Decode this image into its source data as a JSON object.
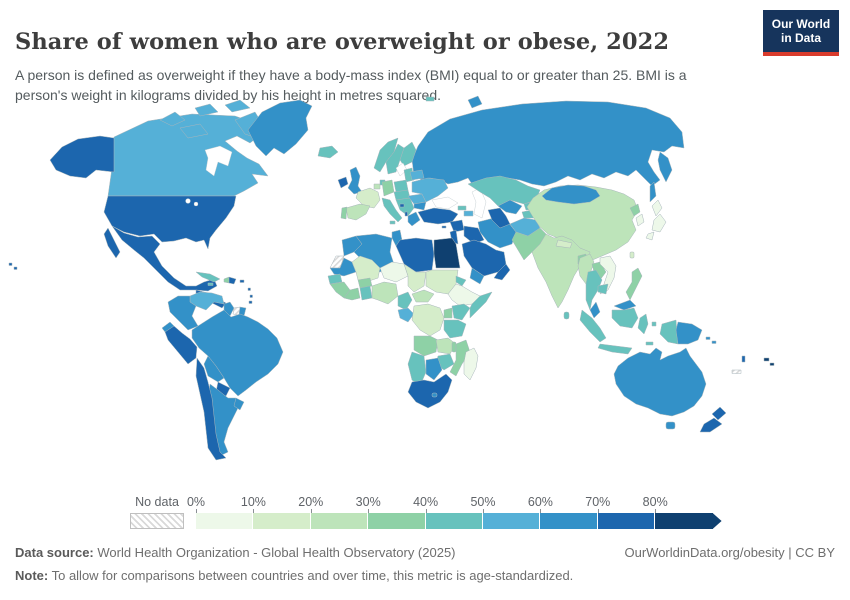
{
  "header": {
    "title": "Share of women who are overweight or obese, 2022",
    "subtitle": "A person is defined as overweight if they have a body-mass index (BMI) equal to or greater than 25. BMI is a person's weight in kilograms divided by his height in metres squared.",
    "logo": {
      "line1": "Our World",
      "line2": "in Data",
      "bg_color": "#16345c",
      "stripe_color": "#d93b2c"
    }
  },
  "legend": {
    "no_data_label": "No data",
    "ticks": [
      "0%",
      "10%",
      "20%",
      "30%",
      "40%",
      "50%",
      "60%",
      "70%",
      "80%"
    ]
  },
  "footer": {
    "data_source_label": "Data source:",
    "data_source": " World Health Organization - Global Health Observatory (2025)",
    "link": "OurWorldinData.org/obesity | CC BY",
    "note_label": "Note:",
    "note": " To allow for comparisons between countries and over time, this metric is age-standardized."
  },
  "chart_data": {
    "type": "choropleth_map",
    "title": "Share of women who are overweight or obese, 2022",
    "year": 2022,
    "legend_position": "bottom",
    "band_colors": {
      "b0": "#edf8e9",
      "b1": "#d5edca",
      "b2": "#bde4ba",
      "b3": "#8ed1a6",
      "b4": "#67c2bd",
      "b5": "#55b0d7",
      "b6": "#3391c8",
      "b7": "#1c66ae",
      "b8": "#0f4070",
      "nodata": "url(#hatch)"
    },
    "bins": [
      {
        "range": "0-10%",
        "color": "#edf8e9"
      },
      {
        "range": "10-20%",
        "color": "#d5edca"
      },
      {
        "range": "20-30%",
        "color": "#bde4ba"
      },
      {
        "range": "30-40%",
        "color": "#8ed1a6"
      },
      {
        "range": "40-50%",
        "color": "#67c2bd"
      },
      {
        "range": "50-60%",
        "color": "#55b0d7"
      },
      {
        "range": "60-70%",
        "color": "#3391c8"
      },
      {
        "range": "70-80%",
        "color": "#1c66ae"
      },
      {
        "range": "80%+",
        "color": "#0f4070"
      }
    ],
    "countries": [
      {
        "n": "United States",
        "v": "70-80%"
      },
      {
        "n": "Mexico",
        "v": "70-80%"
      },
      {
        "n": "Canada",
        "v": "50-60%"
      },
      {
        "n": "Greenland",
        "v": "60-70%"
      },
      {
        "n": "Central America",
        "v": "70-80%"
      },
      {
        "n": "Cuba",
        "v": "40-50%"
      },
      {
        "n": "Haiti",
        "v": "30-40%"
      },
      {
        "n": "Dominican Republic",
        "v": "70-80%"
      },
      {
        "n": "Venezuela",
        "v": "50-60%"
      },
      {
        "n": "Colombia",
        "v": "60-70%"
      },
      {
        "n": "Guyana",
        "v": "60-70%"
      },
      {
        "n": "Ecuador",
        "v": "60-70%"
      },
      {
        "n": "Peru",
        "v": "70-80%"
      },
      {
        "n": "Brazil",
        "v": "60-70%"
      },
      {
        "n": "Bolivia",
        "v": "60-70%"
      },
      {
        "n": "Paraguay",
        "v": "70-80%"
      },
      {
        "n": "Chile",
        "v": "70-80%"
      },
      {
        "n": "Argentina",
        "v": "60-70%"
      },
      {
        "n": "Uruguay",
        "v": "60-70%"
      },
      {
        "n": "Iceland",
        "v": "40-50%"
      },
      {
        "n": "Ireland",
        "v": "70-80%"
      },
      {
        "n": "United Kingdom",
        "v": "60-70%"
      },
      {
        "n": "Norway",
        "v": "40-50%"
      },
      {
        "n": "Sweden",
        "v": "40-50%"
      },
      {
        "n": "Finland",
        "v": "40-50%"
      },
      {
        "n": "France",
        "v": "10-20%"
      },
      {
        "n": "Spain",
        "v": "20-30%"
      },
      {
        "n": "Portugal",
        "v": "30-40%"
      },
      {
        "n": "Germany",
        "v": "30-40%"
      },
      {
        "n": "Poland",
        "v": "40-50%"
      },
      {
        "n": "Italy",
        "v": "40-50%"
      },
      {
        "n": "Central Europe",
        "v": "40-50%"
      },
      {
        "n": "Balkans",
        "v": "40-50%"
      },
      {
        "n": "Bosnia",
        "v": "70-80%"
      },
      {
        "n": "Greece",
        "v": "60-70%"
      },
      {
        "n": "Romania",
        "v": "50-60%"
      },
      {
        "n": "Bulgaria",
        "v": "60-70%"
      },
      {
        "n": "Ukraine",
        "v": "50-60%"
      },
      {
        "n": "Belarus",
        "v": "50-60%"
      },
      {
        "n": "Russia",
        "v": "60-70%"
      },
      {
        "n": "Turkey",
        "v": "70-80%"
      },
      {
        "n": "Georgia",
        "v": "40-50%"
      },
      {
        "n": "Azerbaijan",
        "v": "50-60%"
      },
      {
        "n": "Syria",
        "v": "70-80%"
      },
      {
        "n": "Iraq",
        "v": "70-80%"
      },
      {
        "n": "Jordan",
        "v": "70-80%"
      },
      {
        "n": "Saudi Arabia",
        "v": "70-80%"
      },
      {
        "n": "Yemen",
        "v": "60-70%"
      },
      {
        "n": "Oman",
        "v": "70-80%"
      },
      {
        "n": "Iran",
        "v": "60-70%"
      },
      {
        "n": "Egypt",
        "v": "80%+"
      },
      {
        "n": "Libya",
        "v": "70-80%"
      },
      {
        "n": "Tunisia",
        "v": "60-70%"
      },
      {
        "n": "Algeria",
        "v": "60-70%"
      },
      {
        "n": "Morocco",
        "v": "60-70%"
      },
      {
        "n": "Mauritania",
        "v": "60-70%"
      },
      {
        "n": "Mali",
        "v": "10-20%"
      },
      {
        "n": "Niger",
        "v": "0-10%"
      },
      {
        "n": "Chad",
        "v": "10-20%"
      },
      {
        "n": "Sudan",
        "v": "10-20%"
      },
      {
        "n": "Ethiopia",
        "v": "0-10%"
      },
      {
        "n": "Somalia",
        "v": "40-50%"
      },
      {
        "n": "Eritrea",
        "v": "40-50%"
      },
      {
        "n": "Senegal",
        "v": "40-50%"
      },
      {
        "n": "Guinea",
        "v": "30-40%"
      },
      {
        "n": "Ivory Coast",
        "v": "30-40%"
      },
      {
        "n": "Burkina Faso",
        "v": "30-40%"
      },
      {
        "n": "Ghana",
        "v": "40-50%"
      },
      {
        "n": "Nigeria",
        "v": "20-30%"
      },
      {
        "n": "Cameroon",
        "v": "40-50%"
      },
      {
        "n": "Central African Republic",
        "v": "20-30%"
      },
      {
        "n": "Gabon",
        "v": "50-60%"
      },
      {
        "n": "DR Congo",
        "v": "10-20%"
      },
      {
        "n": "Uganda",
        "v": "30-40%"
      },
      {
        "n": "Kenya",
        "v": "40-50%"
      },
      {
        "n": "Tanzania",
        "v": "40-50%"
      },
      {
        "n": "Angola",
        "v": "30-40%"
      },
      {
        "n": "Zambia",
        "v": "20-30%"
      },
      {
        "n": "Malawi",
        "v": "30-40%"
      },
      {
        "n": "Mozambique",
        "v": "30-40%"
      },
      {
        "n": "Zimbabwe",
        "v": "40-50%"
      },
      {
        "n": "Namibia",
        "v": "40-50%"
      },
      {
        "n": "Botswana",
        "v": "60-70%"
      },
      {
        "n": "South Africa",
        "v": "70-80%"
      },
      {
        "n": "Lesotho",
        "v": "60-70%"
      },
      {
        "n": "Madagascar",
        "v": "0-10%"
      },
      {
        "n": "Kazakhstan",
        "v": "40-50%"
      },
      {
        "n": "Uzbekistan",
        "v": "60-70%"
      },
      {
        "n": "Turkmenistan",
        "v": "70-80%"
      },
      {
        "n": "Kyrgyzstan",
        "v": "40-50%"
      },
      {
        "n": "Tajikistan",
        "v": "40-50%"
      },
      {
        "n": "Afghanistan",
        "v": "50-60%"
      },
      {
        "n": "Pakistan",
        "v": "30-40%"
      },
      {
        "n": "India",
        "v": "20-30%"
      },
      {
        "n": "Nepal",
        "v": "10-20%"
      },
      {
        "n": "Bangladesh",
        "v": "30-40%"
      },
      {
        "n": "Sri Lanka",
        "v": "40-50%"
      },
      {
        "n": "China",
        "v": "20-30%"
      },
      {
        "n": "Mongolia",
        "v": "60-70%"
      },
      {
        "n": "North Korea",
        "v": "30-40%"
      },
      {
        "n": "South Korea",
        "v": "0-10%"
      },
      {
        "n": "Japan",
        "v": "0-10%"
      },
      {
        "n": "Taiwan",
        "v": "10-20%"
      },
      {
        "n": "Myanmar",
        "v": "20-30%"
      },
      {
        "n": "Laos",
        "v": "30-40%"
      },
      {
        "n": "Vietnam",
        "v": "0-10%"
      },
      {
        "n": "Thailand",
        "v": "40-50%"
      },
      {
        "n": "Cambodia",
        "v": "40-50%"
      },
      {
        "n": "Malaysia",
        "v": "60-70%"
      },
      {
        "n": "Indonesia",
        "v": "40-50%"
      },
      {
        "n": "Philippines",
        "v": "30-40%"
      },
      {
        "n": "Papua New Guinea",
        "v": "60-70%"
      },
      {
        "n": "Solomon Islands",
        "v": "60-70%"
      },
      {
        "n": "Australia",
        "v": "60-70%"
      },
      {
        "n": "New Zealand",
        "v": "70-80%"
      },
      {
        "n": "Fiji",
        "v": "80%+"
      },
      {
        "n": "Vanuatu",
        "v": "70-80%"
      },
      {
        "n": "Hawaii (US)",
        "v": "70-80%"
      }
    ],
    "no_data": {
      "label": "No data",
      "countries": [
        "Western Sahara",
        "Suriname",
        "New Caledonia"
      ]
    }
  }
}
